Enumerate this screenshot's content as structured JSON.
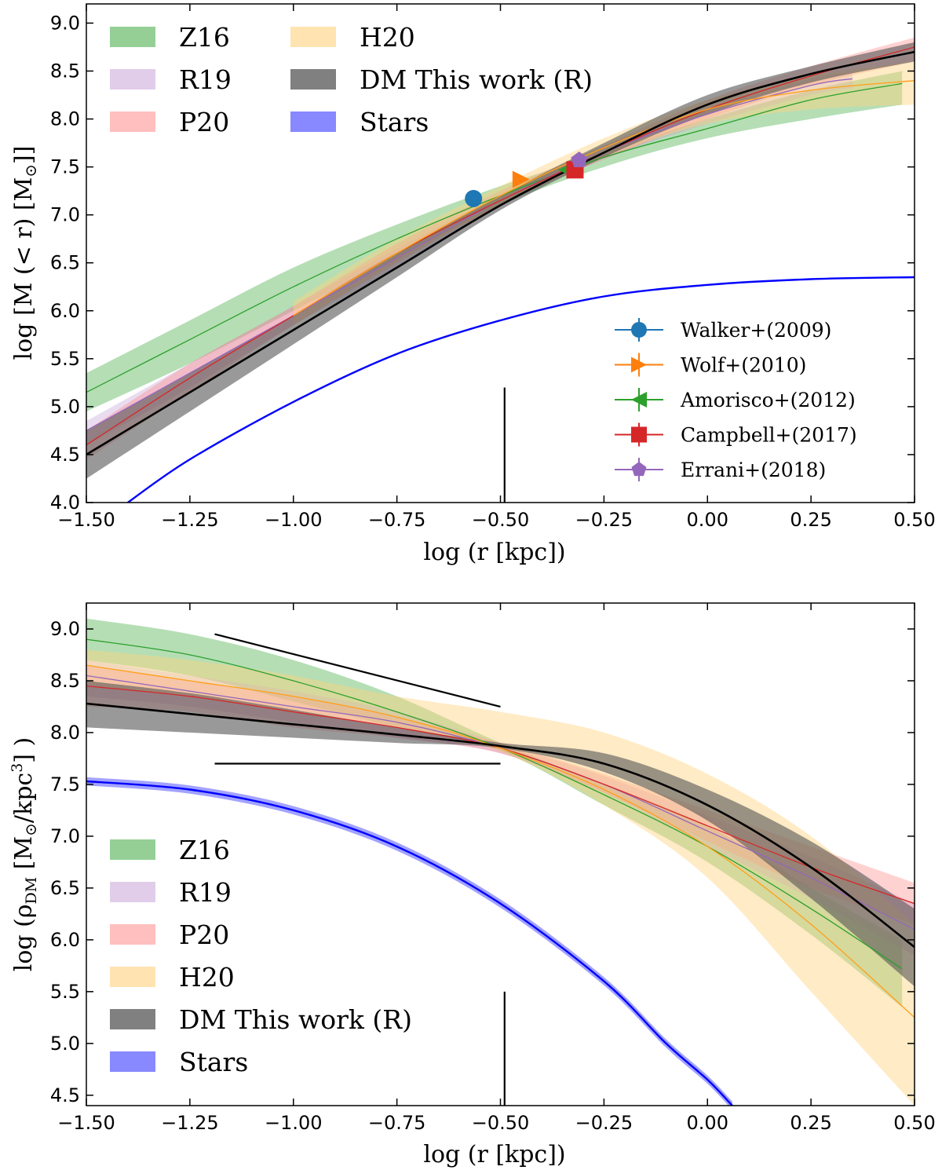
{
  "chart_data": [
    {
      "type": "line",
      "xlabel": "log (r  [kpc])",
      "ylabel": "log [M (< r)  [M⊙]]",
      "xlim": [
        -1.5,
        0.5
      ],
      "ylim": [
        4.0,
        9.2
      ],
      "xticks": [
        "−1.50",
        "−1.25",
        "−1.00",
        "−0.75",
        "−0.50",
        "−0.25",
        "0.00",
        "0.25",
        "0.50"
      ],
      "yticks": [
        "4.0",
        "4.5",
        "5.0",
        "5.5",
        "6.0",
        "6.5",
        "7.0",
        "7.5",
        "8.0",
        "8.5",
        "9.0"
      ],
      "grid": false,
      "legend_placement": "top-left, two columns",
      "series": [
        {
          "name": "Z16",
          "color": "#2ca02c",
          "band_color": "#2ca02c",
          "x": [
            -1.5,
            -1.25,
            -1.0,
            -0.75,
            -0.5,
            -0.25,
            0.0,
            0.25,
            0.47
          ],
          "values": [
            5.15,
            5.7,
            6.25,
            6.75,
            7.2,
            7.6,
            7.9,
            8.2,
            8.37
          ],
          "lower": [
            4.95,
            5.45,
            6.0,
            6.55,
            7.1,
            7.5,
            7.8,
            8.0,
            8.15
          ],
          "upper": [
            5.35,
            5.9,
            6.45,
            6.9,
            7.3,
            7.65,
            8.0,
            8.3,
            8.5
          ]
        },
        {
          "name": "R19",
          "color": "#9467bd",
          "band_color": "#c39bd3",
          "x": [
            -1.5,
            -1.25,
            -1.0,
            -0.75,
            -0.5,
            -0.25,
            0.0,
            0.25,
            0.35
          ],
          "values": [
            4.75,
            5.35,
            5.95,
            6.55,
            7.15,
            7.65,
            8.05,
            8.35,
            8.42
          ],
          "lower": [
            4.6,
            5.2,
            5.85,
            6.45,
            7.1,
            7.58,
            7.95,
            8.25,
            8.32
          ],
          "upper": [
            4.85,
            5.45,
            6.05,
            6.65,
            7.2,
            7.72,
            8.1,
            8.42,
            8.48
          ]
        },
        {
          "name": "P20",
          "color": "#d62728",
          "band_color": "#ff7f7f",
          "x": [
            -1.5,
            -1.25,
            -1.0,
            -0.75,
            -0.5,
            -0.25,
            0.0,
            0.25,
            0.5
          ],
          "values": [
            4.6,
            5.3,
            5.95,
            6.6,
            7.15,
            7.65,
            8.1,
            8.45,
            8.75
          ],
          "lower": [
            4.45,
            5.15,
            5.85,
            6.5,
            7.1,
            7.58,
            8.0,
            8.35,
            8.6
          ],
          "upper": [
            4.75,
            5.45,
            6.05,
            6.7,
            7.25,
            7.72,
            8.2,
            8.55,
            8.85
          ]
        },
        {
          "name": "H20",
          "color": "#ff9f1a",
          "band_color": "#ffd27f",
          "x": [
            -1.0,
            -0.75,
            -0.5,
            -0.25,
            0.0,
            0.25,
            0.5
          ],
          "values": [
            5.95,
            6.6,
            7.2,
            7.7,
            8.1,
            8.3,
            8.4
          ],
          "lower": [
            5.85,
            6.5,
            7.1,
            7.6,
            7.95,
            8.1,
            8.15
          ],
          "upper": [
            6.1,
            6.75,
            7.3,
            7.8,
            8.2,
            8.45,
            8.6
          ]
        },
        {
          "name": "DM This work (R)",
          "color": "#000000",
          "band_color": "#555555",
          "x": [
            -1.5,
            -1.25,
            -1.0,
            -0.75,
            -0.5,
            -0.25,
            0.0,
            0.25,
            0.5
          ],
          "values": [
            4.5,
            5.15,
            5.8,
            6.45,
            7.1,
            7.65,
            8.15,
            8.47,
            8.7
          ],
          "lower": [
            4.25,
            4.95,
            5.65,
            6.35,
            7.05,
            7.6,
            8.05,
            8.38,
            8.6
          ],
          "upper": [
            4.75,
            5.35,
            5.95,
            6.6,
            7.2,
            7.75,
            8.25,
            8.55,
            8.8
          ]
        },
        {
          "name": "Stars",
          "color": "#0000ff",
          "band_color": "#5555ff",
          "x": [
            -1.4,
            -1.25,
            -1.0,
            -0.75,
            -0.5,
            -0.25,
            0.0,
            0.25,
            0.5
          ],
          "values": [
            4.0,
            4.45,
            5.05,
            5.55,
            5.9,
            6.15,
            6.27,
            6.33,
            6.35
          ]
        }
      ],
      "markers": [
        {
          "name": "Walker+(2009)",
          "color": "#1f77b4",
          "shape": "circle",
          "x": -0.565,
          "y": 7.17
        },
        {
          "name": "Wolf+(2010)",
          "color": "#ff7f0e",
          "shape": "triangle-right",
          "x": -0.45,
          "y": 7.37
        },
        {
          "name": "Amorisco+(2012)",
          "color": "#2ca02c",
          "shape": "triangle-left",
          "x": -0.34,
          "y": 7.47
        },
        {
          "name": "Campbell+(2017)",
          "color": "#d62728",
          "shape": "square",
          "x": -0.32,
          "y": 7.47
        },
        {
          "name": "Errani+(2018)",
          "color": "#9467bd",
          "shape": "pentagon",
          "x": -0.31,
          "y": 7.57
        }
      ],
      "reference_lines": [
        {
          "x": [
            -0.49,
            -0.49
          ],
          "y": [
            4.0,
            5.2
          ]
        }
      ]
    },
    {
      "type": "line",
      "xlabel": "log (r [kpc])",
      "ylabel": "log (ρDM [M⊙/kpc3] )",
      "xlim": [
        -1.5,
        0.5
      ],
      "ylim": [
        4.4,
        9.25
      ],
      "xticks": [
        "−1.50",
        "−1.25",
        "−1.00",
        "−0.75",
        "−0.50",
        "−0.25",
        "0.00",
        "0.25",
        "0.50"
      ],
      "yticks": [
        "4.5",
        "5.0",
        "5.5",
        "6.0",
        "6.5",
        "7.0",
        "7.5",
        "8.0",
        "8.5",
        "9.0"
      ],
      "grid": false,
      "legend_placement": "bottom-left",
      "series": [
        {
          "name": "Z16",
          "color": "#2ca02c",
          "band_color": "#2ca02c",
          "x": [
            -1.5,
            -1.25,
            -1.0,
            -0.75,
            -0.5,
            -0.25,
            0.0,
            0.25,
            0.47
          ],
          "values": [
            8.9,
            8.75,
            8.5,
            8.2,
            7.85,
            7.4,
            6.9,
            6.3,
            5.72
          ],
          "lower": [
            8.7,
            8.55,
            8.3,
            8.05,
            7.82,
            7.3,
            6.75,
            6.05,
            5.35
          ],
          "upper": [
            9.1,
            8.95,
            8.7,
            8.35,
            7.9,
            7.5,
            7.1,
            6.5,
            6.0
          ]
        },
        {
          "name": "R19",
          "color": "#9467bd",
          "band_color": "#c39bd3",
          "x": [
            -1.5,
            -1.25,
            -1.0,
            -0.75,
            -0.5,
            -0.25,
            0.0,
            0.25,
            0.5
          ],
          "values": [
            8.55,
            8.4,
            8.25,
            8.1,
            7.85,
            7.5,
            7.05,
            6.6,
            6.1
          ],
          "lower": [
            8.35,
            8.25,
            8.1,
            7.95,
            7.8,
            7.42,
            6.9,
            6.4,
            5.85
          ],
          "upper": [
            8.7,
            8.55,
            8.4,
            8.2,
            7.9,
            7.58,
            7.2,
            6.8,
            6.35
          ]
        },
        {
          "name": "P20",
          "color": "#d62728",
          "band_color": "#ff7f7f",
          "x": [
            -1.5,
            -1.25,
            -1.0,
            -0.75,
            -0.5,
            -0.25,
            0.0,
            0.25,
            0.5
          ],
          "values": [
            8.45,
            8.35,
            8.2,
            8.05,
            7.85,
            7.5,
            7.1,
            6.7,
            6.35
          ],
          "lower": [
            8.25,
            8.2,
            8.05,
            7.95,
            7.8,
            7.42,
            6.95,
            6.5,
            6.15
          ],
          "upper": [
            8.65,
            8.5,
            8.35,
            8.15,
            7.9,
            7.6,
            7.25,
            6.9,
            6.55
          ]
        },
        {
          "name": "H20",
          "color": "#ff9f1a",
          "band_color": "#ffd27f",
          "x": [
            -1.5,
            -1.25,
            -1.0,
            -0.75,
            -0.5,
            -0.25,
            0.0,
            0.25,
            0.5
          ],
          "values": [
            8.65,
            8.5,
            8.35,
            8.15,
            7.85,
            7.45,
            6.9,
            6.15,
            5.25
          ],
          "lower": [
            8.45,
            8.35,
            8.2,
            8.05,
            7.82,
            7.3,
            6.6,
            5.5,
            4.4
          ],
          "upper": [
            8.8,
            8.7,
            8.55,
            8.35,
            8.2,
            8.0,
            7.6,
            7.0,
            6.15
          ]
        },
        {
          "name": "DM This work (R)",
          "color": "#000000",
          "band_color": "#555555",
          "x": [
            -1.5,
            -1.25,
            -1.0,
            -0.75,
            -0.5,
            -0.25,
            0.0,
            0.25,
            0.5
          ],
          "values": [
            8.28,
            8.18,
            8.08,
            7.98,
            7.87,
            7.7,
            7.3,
            6.7,
            5.93
          ],
          "lower": [
            8.05,
            8.0,
            7.95,
            7.9,
            7.85,
            7.62,
            7.15,
            6.4,
            5.55
          ],
          "upper": [
            8.5,
            8.38,
            8.22,
            8.05,
            7.9,
            7.8,
            7.45,
            6.95,
            6.3
          ]
        },
        {
          "name": "Stars",
          "color": "#0000ff",
          "band_color": "#5555ff",
          "x": [
            -1.5,
            -1.25,
            -1.0,
            -0.75,
            -0.5,
            -0.25,
            -0.1,
            0.0,
            0.06
          ],
          "values": [
            7.53,
            7.45,
            7.25,
            6.9,
            6.35,
            5.6,
            5.0,
            4.65,
            4.4
          ],
          "lower": [
            7.49,
            7.41,
            7.21,
            6.86,
            6.31,
            5.56,
            4.96,
            4.61,
            4.36
          ],
          "upper": [
            7.57,
            7.49,
            7.29,
            6.94,
            6.39,
            5.64,
            5.04,
            4.69,
            4.44
          ]
        }
      ],
      "reference_lines": [
        {
          "x": [
            -1.19,
            -0.5
          ],
          "y": [
            8.95,
            8.25
          ]
        },
        {
          "x": [
            -1.19,
            -0.5
          ],
          "y": [
            7.7,
            7.7
          ]
        },
        {
          "x": [
            -0.49,
            -0.49
          ],
          "y": [
            4.4,
            5.5
          ]
        }
      ]
    }
  ],
  "panels": [
    {
      "xlabel": "log (r  [kpc])",
      "ylabel_main": "log [M (< r)  [M",
      "ylabel_sun": "⊙",
      "ylabel_end": "]]",
      "legend_bands": [
        "Z16",
        "R19",
        "P20",
        "H20",
        "DM This work (R)",
        "Stars"
      ],
      "legend_markers": [
        "Walker+(2009)",
        "Wolf+(2010)",
        "Amorisco+(2012)",
        "Campbell+(2017)",
        "Errani+(2018)"
      ]
    },
    {
      "xlabel": "log (r [kpc])",
      "ylabel_main": "log (ρ",
      "ylabel_sub": "DM",
      "ylabel_mid": " [M",
      "ylabel_sun": "⊙",
      "ylabel_unit": "/kpc",
      "ylabel_sup": "3",
      "ylabel_end": "] )",
      "legend_bands": [
        "Z16",
        "R19",
        "P20",
        "H20",
        "DM This work (R)",
        "Stars"
      ]
    }
  ]
}
